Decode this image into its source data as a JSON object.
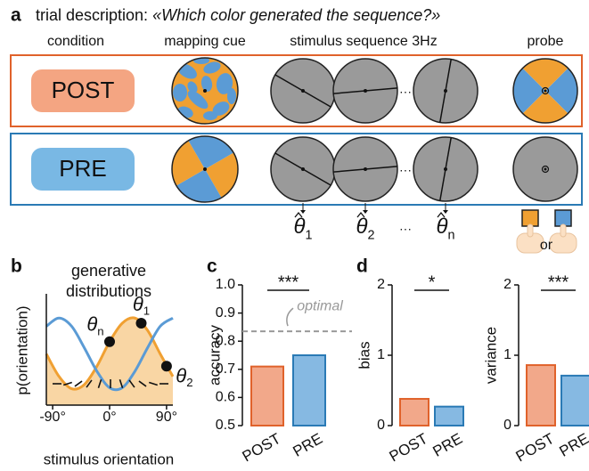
{
  "panel_a": {
    "letter": "a",
    "title": "trial description: ",
    "question": "«Which color generated the sequence?»",
    "columns": [
      "condition",
      "mapping cue",
      "stimulus sequence 3Hz",
      "probe"
    ],
    "conditions": [
      "POST",
      "PRE"
    ],
    "ellipsis": "···",
    "estimates": [
      {
        "symbol": "θ",
        "sub": "1"
      },
      {
        "symbol": "θ",
        "sub": "2"
      },
      {
        "symbol": "θ",
        "sub": "n"
      }
    ],
    "or": "or"
  },
  "chart_data": [
    {
      "type": "line",
      "letter": "b",
      "title": [
        "generative",
        "distributions"
      ],
      "ylabel": "p(orientation)",
      "xlabel": "stimulus orientation",
      "x": [
        -100,
        -80,
        -60,
        -40,
        -20,
        0,
        20,
        40,
        60,
        80,
        100
      ],
      "series": [
        {
          "color": "#f0a032",
          "fill": "#f9d6a4",
          "values": [
            0.5,
            0.28,
            0.16,
            0.2,
            0.38,
            0.62,
            0.8,
            0.85,
            0.73,
            0.5,
            0.28
          ]
        },
        {
          "color": "#5b9bd5",
          "values": [
            0.77,
            0.85,
            0.77,
            0.56,
            0.33,
            0.17,
            0.17,
            0.33,
            0.56,
            0.77,
            0.85
          ]
        }
      ],
      "xlim": [
        -100,
        100
      ],
      "xticks": [
        {
          "value": -90,
          "label": "-90°"
        },
        {
          "value": 0,
          "label": "0°"
        },
        {
          "value": 90,
          "label": "90°"
        }
      ],
      "ylim": [
        0,
        1
      ],
      "points": {
        "x": [
          0,
          50,
          90
        ],
        "values": [
          0.62,
          0.8,
          0.38
        ],
        "labels": [
          {
            "symbol": "θ",
            "sub": "n"
          },
          {
            "symbol": "θ",
            "sub": "1"
          },
          {
            "symbol": "θ",
            "sub": "2"
          }
        ]
      }
    },
    {
      "type": "bar",
      "letter": "c",
      "ylabel": "accuracy",
      "categories": [
        "POST",
        "PRE"
      ],
      "values": [
        0.71,
        0.75
      ],
      "colors": [
        "#f2a88a",
        "#86b9e2"
      ],
      "edges": [
        "#e0622b",
        "#2a7ab5"
      ],
      "ylim": [
        0.5,
        1
      ],
      "yticks": [
        0.5,
        0.6,
        0.7,
        0.8,
        0.9,
        {
          "value": 1,
          "label": "1.0"
        }
      ],
      "significance": "***",
      "reference": {
        "value": 0.835,
        "label": "optimal"
      }
    },
    {
      "type": "bar",
      "letter": "d",
      "ylabel": "bias",
      "categories": [
        "POST",
        "PRE"
      ],
      "values": [
        0.38,
        0.27
      ],
      "colors": [
        "#f2a88a",
        "#86b9e2"
      ],
      "edges": [
        "#e0622b",
        "#2a7ab5"
      ],
      "ylim": [
        0,
        2
      ],
      "yticks": [
        0,
        1,
        2
      ],
      "significance": "*"
    },
    {
      "type": "bar",
      "ylabel": "variance",
      "categories": [
        "POST",
        "PRE"
      ],
      "values": [
        0.86,
        0.71
      ],
      "colors": [
        "#f2a88a",
        "#86b9e2"
      ],
      "edges": [
        "#e0622b",
        "#2a7ab5"
      ],
      "ylim": [
        0,
        2
      ],
      "yticks": [
        0,
        1,
        2
      ],
      "significance": "***"
    }
  ]
}
